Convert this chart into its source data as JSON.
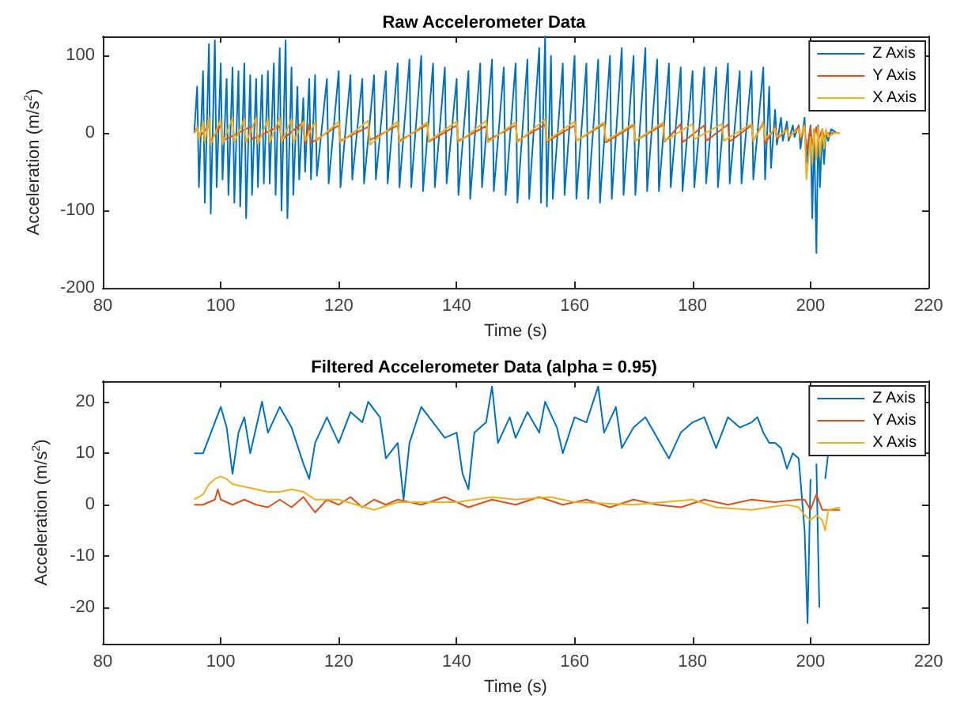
{
  "chart_data": [
    {
      "type": "line",
      "title": "Raw Accelerometer Data",
      "xlabel": "Time (s)",
      "ylabel": "Acceleration (m/s$^{2}$)",
      "xlim": [
        80,
        220
      ],
      "xticks": [
        80,
        100,
        120,
        140,
        160,
        180,
        200,
        220
      ],
      "ylim": [
        -200,
        125
      ],
      "yticks": [
        -200,
        -100,
        0,
        100
      ],
      "grid": false,
      "legend": "top right",
      "marker": "none",
      "line_style": "solid",
      "series": [
        {
          "name": "Z Axis",
          "color": "#0072bd",
          "x": [
            95.5,
            96,
            96.3,
            97,
            97.3,
            98,
            98.3,
            99,
            99.3,
            100,
            100.3,
            101,
            101.3,
            102,
            102.3,
            103,
            103.3,
            104,
            104.3,
            105,
            105.3,
            106,
            106.3,
            107,
            107.3,
            108,
            108.3,
            109,
            109.3,
            110,
            110.3,
            111,
            111.3,
            112,
            112.3,
            113,
            113.3,
            114,
            114.3,
            115,
            115.3,
            116,
            116.3,
            118,
            118.3,
            120,
            120.3,
            122,
            122.3,
            124,
            124.3,
            126,
            126.3,
            128,
            128.3,
            130,
            130.3,
            132,
            132.3,
            134,
            134.3,
            136,
            136.3,
            138,
            138.3,
            140,
            140.3,
            142,
            142.3,
            144,
            144.3,
            146,
            146.3,
            148,
            148.3,
            150,
            150.3,
            152,
            152.3,
            154,
            154.3,
            155,
            155.3,
            156,
            156.3,
            158,
            158.3,
            160,
            160.3,
            162,
            162.3,
            164,
            164.3,
            166,
            166.3,
            168,
            168.3,
            170,
            170.3,
            172,
            172.3,
            174,
            174.3,
            176,
            176.3,
            178,
            178.3,
            180,
            180.3,
            182,
            182.3,
            184,
            184.3,
            186,
            186.3,
            188,
            188.3,
            190,
            190.3,
            192,
            192.3,
            193,
            193.3,
            194,
            194.3,
            195,
            195.3,
            196,
            196.3,
            197,
            197.3,
            198,
            198.3,
            199,
            199.3,
            200,
            200.3,
            200.6,
            201,
            201.3,
            201.6,
            202,
            202.3,
            202.6,
            203,
            203.5,
            204.5
          ],
          "values": [
            0,
            60,
            -70,
            80,
            -90,
            115,
            -104,
            120,
            -70,
            90,
            -60,
            70,
            -80,
            85,
            -90,
            80,
            -95,
            90,
            -110,
            75,
            -80,
            70,
            -70,
            75,
            -65,
            80,
            -65,
            90,
            -80,
            110,
            -100,
            120,
            -110,
            85,
            -80,
            60,
            -60,
            45,
            -50,
            70,
            -60,
            75,
            -55,
            70,
            -65,
            80,
            -70,
            75,
            -60,
            70,
            -65,
            75,
            -60,
            80,
            -65,
            90,
            -70,
            95,
            -70,
            100,
            -75,
            90,
            -70,
            85,
            -65,
            70,
            -80,
            80,
            -85,
            90,
            -70,
            95,
            -75,
            85,
            -80,
            90,
            -90,
            95,
            -85,
            110,
            -90,
            125,
            -95,
            100,
            -85,
            90,
            -80,
            100,
            -85,
            90,
            -85,
            95,
            -90,
            100,
            -85,
            110,
            -80,
            100,
            -80,
            110,
            -75,
            95,
            -75,
            90,
            -70,
            85,
            -75,
            80,
            -70,
            85,
            -65,
            85,
            -70,
            90,
            -65,
            80,
            -65,
            80,
            -60,
            85,
            -60,
            60,
            -45,
            30,
            -15,
            20,
            -10,
            15,
            -10,
            10,
            -5,
            10,
            -20,
            20,
            -40,
            10,
            -110,
            5,
            -155,
            10,
            -70,
            5,
            -40,
            0,
            -10,
            5,
            0
          ]
        },
        {
          "name": "Y Axis",
          "color": "#d95319",
          "x": [
            95.5,
            96,
            96.3,
            98,
            98.3,
            100,
            100.3,
            105,
            105.3,
            110,
            110.3,
            114,
            114.3,
            115,
            115.3,
            120,
            120.3,
            125,
            125.3,
            130,
            130.3,
            135,
            135.3,
            140,
            140.3,
            145,
            145.3,
            150,
            150.3,
            155,
            155.3,
            160,
            160.3,
            165,
            165.3,
            170,
            170.3,
            175,
            175.3,
            178,
            178.3,
            182,
            182.3,
            186,
            186.3,
            190,
            190.3,
            192,
            192.3,
            194,
            194.3,
            196,
            196.3,
            198,
            198.3,
            199,
            199.3,
            200,
            200.3,
            201,
            201.3,
            202,
            202.3,
            203,
            205
          ],
          "values": [
            0,
            6,
            -6,
            10,
            -10,
            10,
            -10,
            8,
            -8,
            9,
            -9,
            14,
            -14,
            12,
            -13,
            10,
            -10,
            8,
            -9,
            10,
            -10,
            11,
            -11,
            10,
            -10,
            9,
            -9,
            10,
            -10,
            11,
            -11,
            10,
            -10,
            12,
            -12,
            10,
            -10,
            11,
            -11,
            12,
            -12,
            10,
            -10,
            11,
            -11,
            10,
            -10,
            14,
            -14,
            8,
            -8,
            6,
            -6,
            8,
            -8,
            10,
            -25,
            8,
            -15,
            8,
            -10,
            5,
            -5,
            0,
            0
          ]
        },
        {
          "name": "X Axis",
          "color": "#edb120",
          "x": [
            95.5,
            96,
            96.3,
            97,
            97.3,
            98,
            98.3,
            100,
            100.3,
            102,
            102.3,
            104,
            104.3,
            106,
            106.3,
            108,
            108.3,
            110,
            110.3,
            112,
            112.3,
            114,
            114.3,
            116,
            116.3,
            120,
            120.3,
            125,
            125.3,
            130,
            130.3,
            135,
            135.3,
            140,
            140.3,
            145,
            145.3,
            150,
            150.3,
            155,
            155.3,
            160,
            160.3,
            165,
            165.3,
            170,
            170.3,
            175,
            175.3,
            180,
            180.3,
            185,
            185.3,
            190,
            190.3,
            192,
            192.3,
            194,
            194.3,
            196,
            196.3,
            198,
            198.3,
            199,
            199.3,
            200,
            200.3,
            200.6,
            201,
            201.3,
            201.6,
            202,
            202.3,
            202.6,
            203,
            204,
            205
          ],
          "values": [
            0,
            8,
            -8,
            15,
            -12,
            20,
            -15,
            18,
            -14,
            20,
            -12,
            18,
            -12,
            20,
            -14,
            18,
            -12,
            20,
            -12,
            18,
            -12,
            15,
            -10,
            14,
            -10,
            15,
            -12,
            16,
            -15,
            15,
            -12,
            14,
            -10,
            15,
            -12,
            16,
            -12,
            14,
            -12,
            18,
            -10,
            15,
            -10,
            14,
            -10,
            12,
            -10,
            14,
            -10,
            12,
            -8,
            12,
            -10,
            12,
            -10,
            12,
            -8,
            6,
            -5,
            4,
            -4,
            5,
            -5,
            10,
            -60,
            -5,
            -40,
            5,
            -35,
            8,
            -30,
            5,
            -20,
            5,
            -5,
            0,
            0
          ]
        }
      ]
    },
    {
      "type": "line",
      "title": "Filtered Accelerometer Data (alpha = 0.95)",
      "xlabel": "Time (s)",
      "ylabel": "Acceleration (m/s$^{2}$)",
      "xlim": [
        80,
        220
      ],
      "xticks": [
        80,
        100,
        120,
        140,
        160,
        180,
        200,
        220
      ],
      "ylim": [
        -27,
        24
      ],
      "yticks": [
        -20,
        -10,
        0,
        10,
        20
      ],
      "grid": false,
      "legend": "top right",
      "marker": "none",
      "line_style": "solid",
      "series": [
        {
          "name": "Z Axis",
          "color": "#0072bd",
          "x": [
            95.5,
            97,
            98,
            99,
            100,
            101,
            102,
            103,
            104,
            105,
            106,
            107,
            108,
            110,
            112,
            114,
            115,
            116,
            118,
            120,
            122,
            124,
            125,
            127,
            128,
            130,
            131,
            132,
            134,
            136,
            138,
            140,
            141,
            142,
            143,
            145,
            146,
            147,
            149,
            150,
            152,
            154,
            155,
            157,
            158,
            160,
            162,
            164,
            165,
            167,
            168,
            170,
            172,
            174,
            176,
            178,
            180,
            182,
            184,
            186,
            188,
            190,
            191,
            192,
            193,
            194,
            195,
            196,
            197,
            198,
            199,
            199.5,
            200,
            200.5,
            201,
            201.5,
            202,
            202.5,
            203
          ],
          "values": [
            10,
            10,
            13,
            16,
            19,
            15,
            6,
            14,
            17,
            10,
            15,
            20,
            14,
            19,
            15,
            8,
            5,
            12,
            17,
            12,
            18,
            16,
            20,
            17,
            9,
            12,
            1,
            12,
            19,
            16,
            13,
            14,
            6,
            3,
            14,
            16,
            23,
            12,
            17,
            13,
            18,
            14,
            20,
            15,
            10,
            17,
            16,
            23,
            14,
            19,
            11,
            15,
            17,
            13,
            9,
            14,
            16,
            17,
            11,
            17,
            15,
            16,
            17,
            14,
            12,
            12,
            11,
            7,
            10,
            9,
            -5,
            -23,
            5,
            null,
            8,
            -20,
            null,
            5,
            10
          ]
        },
        {
          "name": "Y Axis",
          "color": "#d95319",
          "x": [
            95.5,
            97,
            98,
            99,
            99.5,
            100,
            102,
            104,
            106,
            108,
            110,
            112,
            114,
            116,
            118,
            120,
            122,
            124,
            126,
            128,
            130,
            134,
            138,
            142,
            146,
            150,
            154,
            158,
            162,
            166,
            170,
            174,
            178,
            182,
            186,
            190,
            194,
            198,
            199,
            200,
            201,
            202,
            203,
            205
          ],
          "values": [
            0,
            0,
            0.5,
            1,
            3,
            1,
            0,
            1,
            0,
            -0.5,
            1,
            -0.5,
            1.5,
            -1.5,
            1,
            0,
            1.5,
            -0.5,
            1,
            0,
            1,
            0,
            1.5,
            -0.5,
            1,
            0,
            1.5,
            0,
            1,
            -0.5,
            1,
            0,
            -0.5,
            1,
            0,
            1,
            0.5,
            1,
            1,
            -1,
            2,
            -1,
            -1,
            -1
          ]
        },
        {
          "name": "X Axis",
          "color": "#edb120",
          "x": [
            95.5,
            97,
            98,
            99,
            100,
            101,
            102,
            104,
            106,
            108,
            110,
            112,
            114,
            116,
            120,
            126,
            130,
            140,
            146,
            150,
            156,
            160,
            170,
            180,
            184,
            190,
            196,
            198,
            199,
            200,
            201,
            202,
            202.5,
            203,
            205
          ],
          "values": [
            1,
            2,
            4,
            5,
            5.5,
            5,
            4,
            3.5,
            3,
            2.5,
            2.5,
            3,
            2.5,
            1,
            1,
            -1,
            0.5,
            0.5,
            1.5,
            1,
            1.5,
            0.5,
            0,
            1,
            -0.5,
            -1,
            0,
            -0.5,
            -2,
            -3,
            -2,
            -3,
            -5,
            -1,
            -0.5
          ]
        }
      ]
    }
  ]
}
